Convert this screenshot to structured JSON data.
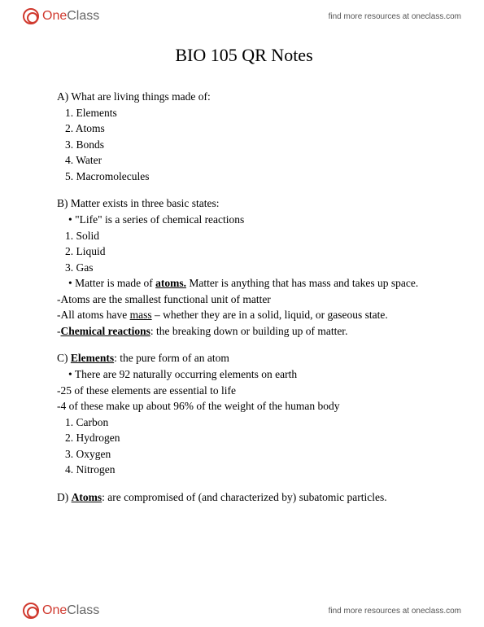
{
  "brand": {
    "part1": "One",
    "part2": "Class"
  },
  "resources_text": "find more resources at oneclass.com",
  "title": "BIO 105 QR Notes",
  "sectionA": {
    "heading": "A) What are living things made of:",
    "items": [
      "1. Elements",
      "2. Atoms",
      "3. Bonds",
      "4. Water",
      "5. Macromolecules"
    ]
  },
  "sectionB": {
    "heading": "B) Matter exists in three basic states:",
    "bullet1": "\"Life\" is a series of chemical reactions",
    "items": [
      "1. Solid",
      "2. Liquid",
      "3. Gas"
    ],
    "bullet2_pre": "Matter is made of ",
    "bullet2_em": "atoms.",
    "bullet2_post": " Matter is anything that has mass and takes up space.",
    "line1": "-Atoms are the smallest functional unit of matter",
    "line2_pre": "-All atoms have ",
    "line2_em": "mass",
    "line2_post": " – whether they are in a solid, liquid, or gaseous state.",
    "line3_pre": "-",
    "line3_em": "Chemical reactions",
    "line3_post": ": the breaking down or building up of matter."
  },
  "sectionC": {
    "heading_pre": "C) ",
    "heading_em": "Elements",
    "heading_post": ": the pure form of an atom",
    "bullet1": "There are 92 naturally occurring elements on earth",
    "line1": "-25 of these elements are essential to life",
    "line2": "-4 of these make up about 96% of the weight of the human body",
    "items": [
      "1. Carbon",
      "2. Hydrogen",
      "3. Oxygen",
      "4. Nitrogen"
    ]
  },
  "sectionD": {
    "heading_pre": "D) ",
    "heading_em": "Atoms",
    "heading_post": ": are compromised of (and characterized by) subatomic particles."
  }
}
